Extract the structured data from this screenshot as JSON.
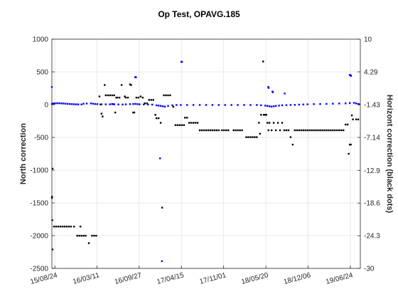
{
  "chart_data": {
    "type": "scatter",
    "title": "Op Test, OPAVG.185",
    "xlabel": "",
    "ylabel": "North correction",
    "ylabel_right": "Horizont correction (black dots)",
    "x_ticks": [
      "15/08/24",
      "16/03/11",
      "16/09/27",
      "17/04/15",
      "17/11/01",
      "18/05/20",
      "18/12/06",
      "19/06/24"
    ],
    "x_tick_positions": [
      14,
      213,
      413,
      613,
      813,
      1013,
      1213,
      1413
    ],
    "xlim": [
      0,
      1460
    ],
    "ylim": [
      -2500,
      1000
    ],
    "y_ticks": [
      -2500,
      -2000,
      -1500,
      -1000,
      -500,
      0,
      500,
      1000
    ],
    "y_tick_labels": [
      "-2500",
      "-2000",
      "-1500",
      "-1000",
      "-500",
      "0",
      "500",
      "1000"
    ],
    "ylim_right": [
      -30,
      10
    ],
    "y_ticks_right": [
      -30,
      -24.3,
      -18.6,
      -12.9,
      -7.14,
      -1.43,
      4.29,
      10
    ],
    "y_tick_labels_right": [
      "-30",
      "-24.3",
      "-18.6",
      "-12.9",
      "-7.14",
      "-1.43",
      "4.29",
      "10"
    ],
    "grid": true,
    "colors": {
      "north": "#0000ff",
      "horizont": "#000000"
    },
    "series": [
      {
        "name": "",
        "axis": "left",
        "color": "#0000ff",
        "points": [
          [
            0,
            270
          ],
          [
            0,
            10
          ],
          [
            5,
            15
          ],
          [
            10,
            18
          ],
          [
            15,
            20
          ],
          [
            25,
            22
          ],
          [
            35,
            22
          ],
          [
            45,
            20
          ],
          [
            55,
            18
          ],
          [
            65,
            15
          ],
          [
            75,
            12
          ],
          [
            85,
            10
          ],
          [
            95,
            8
          ],
          [
            105,
            6
          ],
          [
            115,
            5
          ],
          [
            125,
            4
          ],
          [
            140,
            3
          ],
          [
            150,
            15
          ],
          [
            165,
            18
          ],
          [
            185,
            20
          ],
          [
            195,
            15
          ],
          [
            205,
            10
          ],
          [
            215,
            8
          ],
          [
            235,
            5
          ],
          [
            255,
            5
          ],
          [
            275,
            5
          ],
          [
            295,
            5
          ],
          [
            315,
            3
          ],
          [
            335,
            2
          ],
          [
            350,
            5
          ],
          [
            370,
            8
          ],
          [
            385,
            10
          ],
          [
            395,
            12
          ],
          [
            405,
            8
          ],
          [
            415,
            5
          ],
          [
            435,
            3
          ],
          [
            455,
            2
          ],
          [
            475,
            0
          ],
          [
            495,
            -10
          ],
          [
            505,
            -15
          ],
          [
            515,
            -20
          ],
          [
            525,
            -25
          ],
          [
            535,
            -30
          ],
          [
            550,
            -20
          ],
          [
            570,
            -10
          ],
          [
            590,
            -5
          ],
          [
            610,
            -5
          ],
          [
            640,
            -5
          ],
          [
            670,
            -5
          ],
          [
            700,
            -5
          ],
          [
            730,
            -5
          ],
          [
            760,
            -5
          ],
          [
            790,
            -5
          ],
          [
            820,
            -5
          ],
          [
            850,
            -5
          ],
          [
            880,
            -5
          ],
          [
            910,
            -5
          ],
          [
            940,
            -5
          ],
          [
            970,
            -5
          ],
          [
            990,
            -10
          ],
          [
            1010,
            -15
          ],
          [
            1020,
            -20
          ],
          [
            1030,
            -25
          ],
          [
            1040,
            -30
          ],
          [
            1050,
            -25
          ],
          [
            1060,
            -20
          ],
          [
            1075,
            -15
          ],
          [
            1090,
            -10
          ],
          [
            1110,
            -8
          ],
          [
            1130,
            -5
          ],
          [
            1150,
            -3
          ],
          [
            1170,
            0
          ],
          [
            1190,
            3
          ],
          [
            1210,
            5
          ],
          [
            1240,
            8
          ],
          [
            1270,
            10
          ],
          [
            1300,
            12
          ],
          [
            1330,
            15
          ],
          [
            1360,
            18
          ],
          [
            1390,
            20
          ],
          [
            1410,
            25
          ],
          [
            1430,
            28
          ],
          [
            1440,
            20
          ],
          [
            1450,
            10
          ],
          [
            1455,
            5
          ],
          [
            1410,
            455
          ],
          [
            1412,
            450
          ],
          [
            1414,
            445
          ],
          [
            1416,
            440
          ],
          [
            394,
            420
          ],
          [
            398,
            418
          ],
          [
            613,
            655
          ],
          [
            616,
            652
          ],
          [
            1024,
            270
          ],
          [
            1026,
            255
          ],
          [
            1044,
            200
          ],
          [
            1046,
            190
          ],
          [
            1102,
            170
          ],
          [
            285,
            10
          ],
          [
            289,
            8
          ],
          [
            512,
            -820
          ],
          [
            521,
            -2390
          ]
        ]
      },
      {
        "name": "",
        "axis": "right",
        "color": "#000000",
        "points": [
          [
            0,
            -17.7
          ],
          [
            1,
            -17.5
          ],
          [
            2,
            -21.6
          ],
          [
            3,
            -26.7
          ],
          [
            3,
            -12.6
          ],
          [
            10,
            -22.7
          ],
          [
            20,
            -22.7
          ],
          [
            30,
            -22.7
          ],
          [
            40,
            -22.7
          ],
          [
            50,
            -22.7
          ],
          [
            60,
            -22.7
          ],
          [
            70,
            -22.7
          ],
          [
            80,
            -22.7
          ],
          [
            90,
            -22.7
          ],
          [
            105,
            -22.7
          ],
          [
            135,
            -22.7
          ],
          [
            120,
            -24.3
          ],
          [
            130,
            -24.3
          ],
          [
            140,
            -24.3
          ],
          [
            150,
            -24.3
          ],
          [
            160,
            -24.3
          ],
          [
            175,
            -25.6
          ],
          [
            190,
            -24.3
          ],
          [
            200,
            -24.3
          ],
          [
            210,
            -24.3
          ],
          [
            225,
            0.0
          ],
          [
            230,
            -1.4
          ],
          [
            235,
            -3.0
          ],
          [
            240,
            -3.5
          ],
          [
            250,
            2.0
          ],
          [
            255,
            0.2
          ],
          [
            265,
            0.2
          ],
          [
            275,
            0.2
          ],
          [
            285,
            0.2
          ],
          [
            295,
            0.2
          ],
          [
            300,
            -2.8
          ],
          [
            305,
            -0.2
          ],
          [
            310,
            -0.2
          ],
          [
            320,
            -0.2
          ],
          [
            330,
            2.0
          ],
          [
            345,
            0.0
          ],
          [
            350,
            -0.2
          ],
          [
            360,
            -0.2
          ],
          [
            370,
            2.1
          ],
          [
            375,
            2.0
          ],
          [
            385,
            -2.8
          ],
          [
            390,
            -2.8
          ],
          [
            400,
            -0.2
          ],
          [
            410,
            -0.2
          ],
          [
            420,
            0.0
          ],
          [
            430,
            -0.2
          ],
          [
            440,
            -1.2
          ],
          [
            450,
            -1.2
          ],
          [
            460,
            -0.6
          ],
          [
            470,
            -0.6
          ],
          [
            480,
            -0.6
          ],
          [
            490,
            -3.2
          ],
          [
            495,
            -3.8
          ],
          [
            505,
            -3.8
          ],
          [
            515,
            -4.6
          ],
          [
            522,
            -19.4
          ],
          [
            530,
            0.2
          ],
          [
            540,
            0.2
          ],
          [
            550,
            0.2
          ],
          [
            560,
            0.2
          ],
          [
            575,
            -1.8
          ],
          [
            585,
            -5.0
          ],
          [
            595,
            -5.0
          ],
          [
            605,
            -5.0
          ],
          [
            615,
            -5.0
          ],
          [
            625,
            -5.0
          ],
          [
            630,
            -3.7
          ],
          [
            640,
            -3.7
          ],
          [
            650,
            -4.6
          ],
          [
            660,
            -4.6
          ],
          [
            670,
            -4.6
          ],
          [
            680,
            -4.6
          ],
          [
            690,
            -4.6
          ],
          [
            700,
            -5.9
          ],
          [
            710,
            -5.9
          ],
          [
            720,
            -5.9
          ],
          [
            730,
            -5.9
          ],
          [
            740,
            -5.9
          ],
          [
            750,
            -5.9
          ],
          [
            760,
            -5.9
          ],
          [
            770,
            -5.9
          ],
          [
            780,
            -5.9
          ],
          [
            790,
            -5.9
          ],
          [
            805,
            -5.9
          ],
          [
            815,
            -5.9
          ],
          [
            825,
            -5.9
          ],
          [
            835,
            -5.9
          ],
          [
            860,
            -5.9
          ],
          [
            870,
            -5.9
          ],
          [
            880,
            -5.9
          ],
          [
            890,
            -5.9
          ],
          [
            900,
            -5.9
          ],
          [
            920,
            -7.1
          ],
          [
            930,
            -7.1
          ],
          [
            940,
            -7.1
          ],
          [
            950,
            -7.1
          ],
          [
            960,
            -7.1
          ],
          [
            970,
            -7.1
          ],
          [
            980,
            -4.6
          ],
          [
            985,
            -6.5
          ],
          [
            990,
            -3.2
          ],
          [
            1000,
            6.1
          ],
          [
            1003,
            -3.2
          ],
          [
            1010,
            -3.2
          ],
          [
            1015,
            -3.2
          ],
          [
            1020,
            -4.6
          ],
          [
            1025,
            -5.9
          ],
          [
            1030,
            -4.6
          ],
          [
            1040,
            -5.9
          ],
          [
            1050,
            -4.6
          ],
          [
            1060,
            -5.9
          ],
          [
            1070,
            -4.6
          ],
          [
            1080,
            -5.9
          ],
          [
            1090,
            -4.6
          ],
          [
            1100,
            -5.9
          ],
          [
            1110,
            -5.9
          ],
          [
            1120,
            -5.9
          ],
          [
            1130,
            -7.1
          ],
          [
            1140,
            -8.4
          ],
          [
            1150,
            -5.9
          ],
          [
            1160,
            -5.9
          ],
          [
            1170,
            -5.9
          ],
          [
            1180,
            -5.9
          ],
          [
            1190,
            -5.9
          ],
          [
            1200,
            -5.9
          ],
          [
            1210,
            -5.9
          ],
          [
            1220,
            -5.9
          ],
          [
            1230,
            -5.9
          ],
          [
            1240,
            -5.9
          ],
          [
            1250,
            -5.9
          ],
          [
            1260,
            -5.9
          ],
          [
            1270,
            -5.9
          ],
          [
            1280,
            -5.9
          ],
          [
            1290,
            -5.9
          ],
          [
            1300,
            -5.9
          ],
          [
            1310,
            -5.9
          ],
          [
            1320,
            -5.9
          ],
          [
            1330,
            -5.9
          ],
          [
            1340,
            -5.9
          ],
          [
            1350,
            -5.9
          ],
          [
            1360,
            -5.9
          ],
          [
            1370,
            -5.9
          ],
          [
            1380,
            -5.9
          ],
          [
            1390,
            -4.9
          ],
          [
            1400,
            -4.9
          ],
          [
            1405,
            -10.0
          ],
          [
            1410,
            -8.4
          ],
          [
            1415,
            -8.4
          ],
          [
            1420,
            -3.3
          ],
          [
            1425,
            -4.0
          ],
          [
            1440,
            -4.0
          ],
          [
            1450,
            -4.0
          ]
        ]
      }
    ]
  }
}
